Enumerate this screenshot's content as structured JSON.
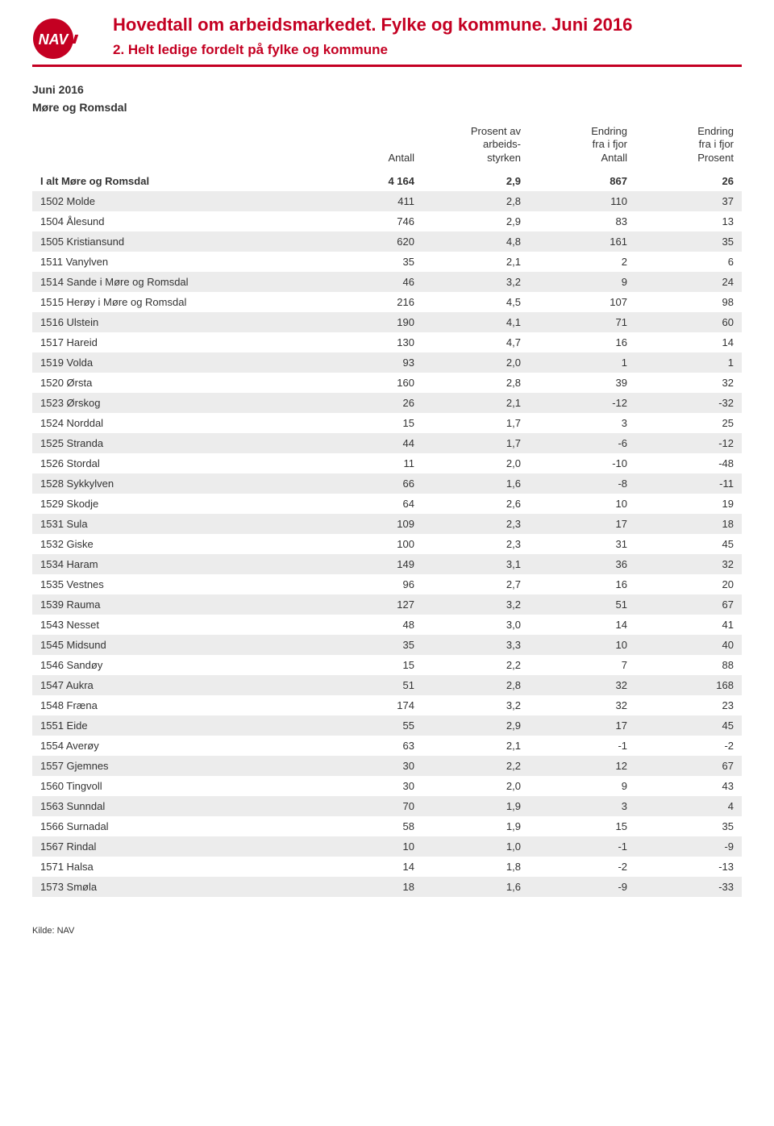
{
  "header": {
    "main_title": "Hovedtall om arbeidsmarkedet. Fylke og kommune. Juni 2016",
    "sub_title": "2. Helt ledige fordelt på fylke og kommune",
    "logo_text": "NAV"
  },
  "colors": {
    "accent": "#c40022",
    "row_shade": "#ececec",
    "text": "#333333",
    "background": "#ffffff"
  },
  "typography": {
    "font_family": "Arial",
    "main_title_pt": 16,
    "sub_title_pt": 13,
    "body_pt": 10
  },
  "period_label": "Juni 2016",
  "region_label": "Møre og Romsdal",
  "table": {
    "columns": [
      {
        "key": "label",
        "header": "",
        "align": "left"
      },
      {
        "key": "antall",
        "header": "Antall",
        "align": "right"
      },
      {
        "key": "prosent",
        "header": "Prosent av arbeids-styrken",
        "align": "right"
      },
      {
        "key": "endr_antall",
        "header": "Endring fra i fjor Antall",
        "align": "right"
      },
      {
        "key": "endr_prosent",
        "header": "Endring fra i fjor Prosent",
        "align": "right"
      }
    ],
    "total_row": {
      "label": "I alt Møre og Romsdal",
      "antall": "4 164",
      "prosent": "2,9",
      "endr_antall": "867",
      "endr_prosent": "26"
    },
    "rows": [
      {
        "label": "1502 Molde",
        "antall": "411",
        "prosent": "2,8",
        "endr_antall": "110",
        "endr_prosent": "37"
      },
      {
        "label": "1504 Ålesund",
        "antall": "746",
        "prosent": "2,9",
        "endr_antall": "83",
        "endr_prosent": "13"
      },
      {
        "label": "1505 Kristiansund",
        "antall": "620",
        "prosent": "4,8",
        "endr_antall": "161",
        "endr_prosent": "35"
      },
      {
        "label": "1511 Vanylven",
        "antall": "35",
        "prosent": "2,1",
        "endr_antall": "2",
        "endr_prosent": "6"
      },
      {
        "label": "1514 Sande i Møre og Romsdal",
        "antall": "46",
        "prosent": "3,2",
        "endr_antall": "9",
        "endr_prosent": "24"
      },
      {
        "label": "1515 Herøy i Møre og Romsdal",
        "antall": "216",
        "prosent": "4,5",
        "endr_antall": "107",
        "endr_prosent": "98"
      },
      {
        "label": "1516 Ulstein",
        "antall": "190",
        "prosent": "4,1",
        "endr_antall": "71",
        "endr_prosent": "60"
      },
      {
        "label": "1517 Hareid",
        "antall": "130",
        "prosent": "4,7",
        "endr_antall": "16",
        "endr_prosent": "14"
      },
      {
        "label": "1519 Volda",
        "antall": "93",
        "prosent": "2,0",
        "endr_antall": "1",
        "endr_prosent": "1"
      },
      {
        "label": "1520 Ørsta",
        "antall": "160",
        "prosent": "2,8",
        "endr_antall": "39",
        "endr_prosent": "32"
      },
      {
        "label": "1523 Ørskog",
        "antall": "26",
        "prosent": "2,1",
        "endr_antall": "-12",
        "endr_prosent": "-32"
      },
      {
        "label": "1524 Norddal",
        "antall": "15",
        "prosent": "1,7",
        "endr_antall": "3",
        "endr_prosent": "25"
      },
      {
        "label": "1525 Stranda",
        "antall": "44",
        "prosent": "1,7",
        "endr_antall": "-6",
        "endr_prosent": "-12"
      },
      {
        "label": "1526 Stordal",
        "antall": "11",
        "prosent": "2,0",
        "endr_antall": "-10",
        "endr_prosent": "-48"
      },
      {
        "label": "1528 Sykkylven",
        "antall": "66",
        "prosent": "1,6",
        "endr_antall": "-8",
        "endr_prosent": "-11"
      },
      {
        "label": "1529 Skodje",
        "antall": "64",
        "prosent": "2,6",
        "endr_antall": "10",
        "endr_prosent": "19"
      },
      {
        "label": "1531 Sula",
        "antall": "109",
        "prosent": "2,3",
        "endr_antall": "17",
        "endr_prosent": "18"
      },
      {
        "label": "1532 Giske",
        "antall": "100",
        "prosent": "2,3",
        "endr_antall": "31",
        "endr_prosent": "45"
      },
      {
        "label": "1534 Haram",
        "antall": "149",
        "prosent": "3,1",
        "endr_antall": "36",
        "endr_prosent": "32"
      },
      {
        "label": "1535 Vestnes",
        "antall": "96",
        "prosent": "2,7",
        "endr_antall": "16",
        "endr_prosent": "20"
      },
      {
        "label": "1539 Rauma",
        "antall": "127",
        "prosent": "3,2",
        "endr_antall": "51",
        "endr_prosent": "67"
      },
      {
        "label": "1543 Nesset",
        "antall": "48",
        "prosent": "3,0",
        "endr_antall": "14",
        "endr_prosent": "41"
      },
      {
        "label": "1545 Midsund",
        "antall": "35",
        "prosent": "3,3",
        "endr_antall": "10",
        "endr_prosent": "40"
      },
      {
        "label": "1546 Sandøy",
        "antall": "15",
        "prosent": "2,2",
        "endr_antall": "7",
        "endr_prosent": "88"
      },
      {
        "label": "1547 Aukra",
        "antall": "51",
        "prosent": "2,8",
        "endr_antall": "32",
        "endr_prosent": "168"
      },
      {
        "label": "1548 Fræna",
        "antall": "174",
        "prosent": "3,2",
        "endr_antall": "32",
        "endr_prosent": "23"
      },
      {
        "label": "1551 Eide",
        "antall": "55",
        "prosent": "2,9",
        "endr_antall": "17",
        "endr_prosent": "45"
      },
      {
        "label": "1554 Averøy",
        "antall": "63",
        "prosent": "2,1",
        "endr_antall": "-1",
        "endr_prosent": "-2"
      },
      {
        "label": "1557 Gjemnes",
        "antall": "30",
        "prosent": "2,2",
        "endr_antall": "12",
        "endr_prosent": "67"
      },
      {
        "label": "1560 Tingvoll",
        "antall": "30",
        "prosent": "2,0",
        "endr_antall": "9",
        "endr_prosent": "43"
      },
      {
        "label": "1563 Sunndal",
        "antall": "70",
        "prosent": "1,9",
        "endr_antall": "3",
        "endr_prosent": "4"
      },
      {
        "label": "1566 Surnadal",
        "antall": "58",
        "prosent": "1,9",
        "endr_antall": "15",
        "endr_prosent": "35"
      },
      {
        "label": "1567 Rindal",
        "antall": "10",
        "prosent": "1,0",
        "endr_antall": "-1",
        "endr_prosent": "-9"
      },
      {
        "label": "1571 Halsa",
        "antall": "14",
        "prosent": "1,8",
        "endr_antall": "-2",
        "endr_prosent": "-13"
      },
      {
        "label": "1573 Smøla",
        "antall": "18",
        "prosent": "1,6",
        "endr_antall": "-9",
        "endr_prosent": "-33"
      }
    ]
  },
  "footer": {
    "source": "Kilde: NAV"
  }
}
